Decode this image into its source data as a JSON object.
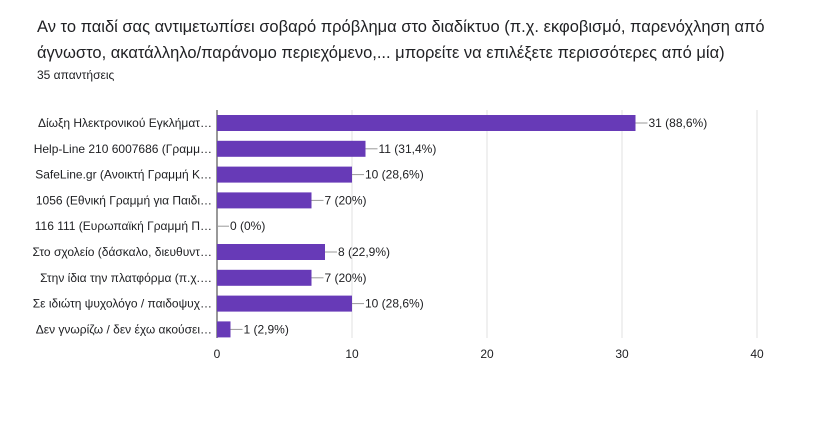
{
  "question": {
    "title": "Αν το παιδί σας αντιμετωπίσει σοβαρό πρόβλημα στο διαδίκτυο (π.χ. εκφοβισμό, παρενόχληση από άγνωστο, ακατάλληλο/παράνομο περιεχόμενο,... μπορείτε να επιλέξετε περισσότερες από μία)",
    "responses": "35 απαντήσεις"
  },
  "colors": {
    "bar": "#673ab7",
    "grid": "#e0e0e0",
    "axis": "#333333",
    "leader": "#999999"
  },
  "chart_data": {
    "type": "bar",
    "orientation": "horizontal",
    "categories": [
      "Δίωξη Ηλεκτρονικού Εγκλήματ…",
      "Help-Line 210 6007686 (Γραμμ…",
      "SafeLine.gr (Ανοικτή Γραμμή Κ…",
      "1056 (Εθνική Γραμμή για Παιδι…",
      "116 111 (Ευρωπαϊκή Γραμμή Π…",
      "Στο σχολείο (δάσκαλο, διευθυντ…",
      "Στην ίδια την πλατφόρμα (π.χ.…",
      "Σε ιδιώτη ψυχολόγο / παιδοψυχ…",
      "Δεν γνωρίζω / δεν έχω ακούσει…"
    ],
    "values": [
      31,
      11,
      10,
      7,
      0,
      8,
      7,
      10,
      1
    ],
    "value_labels": [
      "31 (88,6%)",
      "11 (31,4%)",
      "10 (28,6%)",
      "7 (20%)",
      "0 (0%)",
      "8 (22,9%)",
      "7 (20%)",
      "10 (28,6%)",
      "1 (2,9%)"
    ],
    "xlim": [
      0,
      40
    ],
    "xticks": [
      0,
      10,
      20,
      30,
      40
    ],
    "xtick_labels": [
      "0",
      "10",
      "20",
      "30",
      "40"
    ],
    "grid": true
  }
}
